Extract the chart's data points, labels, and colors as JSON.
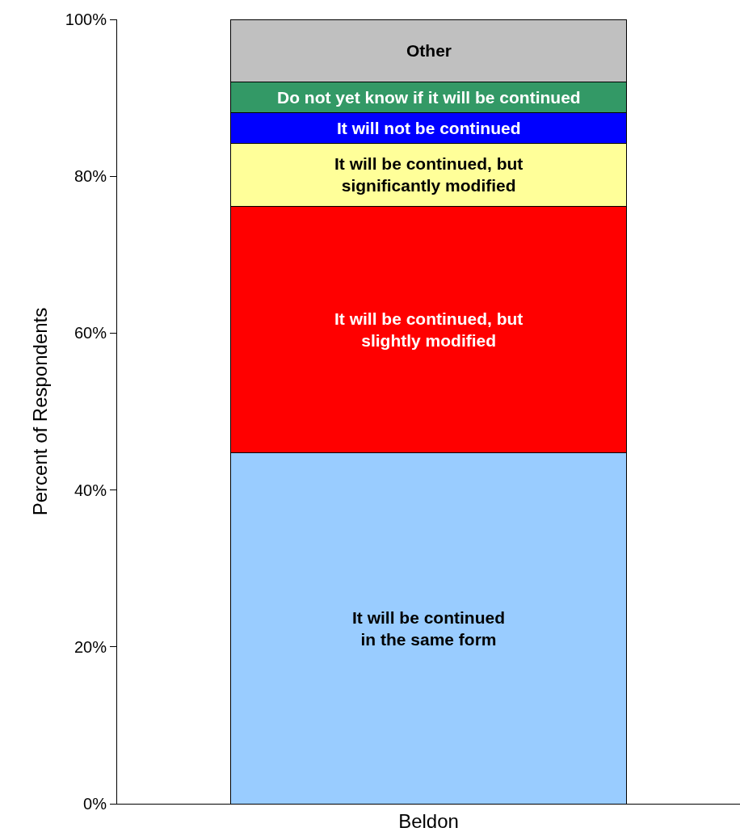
{
  "chart_data": {
    "type": "bar",
    "stacked": true,
    "ylabel": "Percent of Respondents",
    "categories": [
      "Beldon"
    ],
    "series": [
      {
        "name": "It will be continued\nin the same form",
        "color": "#99ccff",
        "values": [
          44.7
        ]
      },
      {
        "name": "It will be continued, but\nslightly modified",
        "color": "#ff0000",
        "values": [
          31.5
        ]
      },
      {
        "name": "It will be continued, but\nsignificantly modified",
        "color": "#ffff99",
        "values": [
          8.0
        ]
      },
      {
        "name": "It will not be continued",
        "color": "#0000ff",
        "values": [
          3.9
        ]
      },
      {
        "name": "Do not yet know if it will be continued",
        "color": "#339966",
        "values": [
          3.9
        ]
      },
      {
        "name": "Other",
        "color": "#c0c0c0",
        "values": [
          8.0
        ]
      }
    ],
    "ylim": [
      0,
      100
    ],
    "yticks": [
      {
        "value": 0,
        "label": "0%"
      },
      {
        "value": 20,
        "label": "20%"
      },
      {
        "value": 40,
        "label": "40%"
      },
      {
        "value": 60,
        "label": "60%"
      },
      {
        "value": 80,
        "label": "80%"
      },
      {
        "value": 100,
        "label": "100%"
      }
    ],
    "legend": false
  }
}
